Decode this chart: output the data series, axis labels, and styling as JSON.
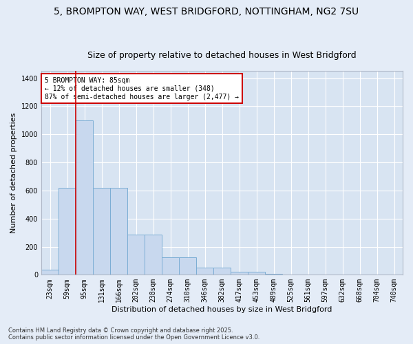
{
  "title_line1": "5, BROMPTON WAY, WEST BRIDGFORD, NOTTINGHAM, NG2 7SU",
  "title_line2": "Size of property relative to detached houses in West Bridgford",
  "xlabel": "Distribution of detached houses by size in West Bridgford",
  "ylabel": "Number of detached properties",
  "categories": [
    "23sqm",
    "59sqm",
    "95sqm",
    "131sqm",
    "166sqm",
    "202sqm",
    "238sqm",
    "274sqm",
    "310sqm",
    "346sqm",
    "382sqm",
    "417sqm",
    "453sqm",
    "489sqm",
    "525sqm",
    "561sqm",
    "597sqm",
    "632sqm",
    "668sqm",
    "704sqm",
    "740sqm"
  ],
  "values": [
    35,
    620,
    1100,
    620,
    620,
    285,
    285,
    125,
    125,
    50,
    50,
    20,
    20,
    5,
    0,
    0,
    0,
    0,
    0,
    0,
    0
  ],
  "bar_color": "#c8d8ee",
  "bar_edge_color": "#7badd4",
  "vline_color": "#cc0000",
  "vline_index": 1.5,
  "annotation_text": "5 BROMPTON WAY: 85sqm\n← 12% of detached houses are smaller (348)\n87% of semi-detached houses are larger (2,477) →",
  "annotation_box_facecolor": "#ffffff",
  "annotation_box_edgecolor": "#cc0000",
  "ylim": [
    0,
    1450
  ],
  "yticks": [
    0,
    200,
    400,
    600,
    800,
    1000,
    1200,
    1400
  ],
  "bg_color": "#e4ecf7",
  "plot_bg_color": "#d8e4f2",
  "grid_color": "#ffffff",
  "footer_line1": "Contains HM Land Registry data © Crown copyright and database right 2025.",
  "footer_line2": "Contains public sector information licensed under the Open Government Licence v3.0.",
  "title_fontsize": 10,
  "subtitle_fontsize": 9,
  "tick_fontsize": 7,
  "xlabel_fontsize": 8,
  "ylabel_fontsize": 8,
  "annotation_fontsize": 7,
  "footer_fontsize": 6
}
